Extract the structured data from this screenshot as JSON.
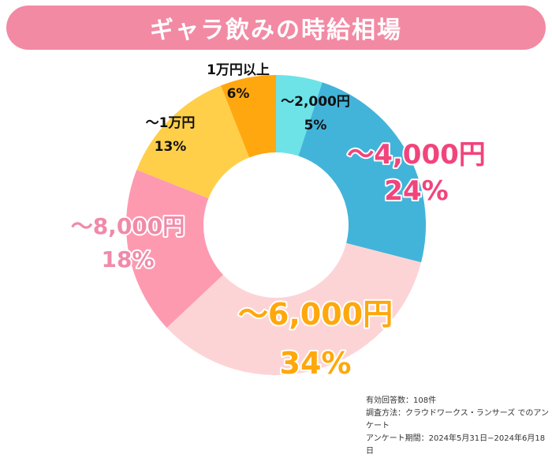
{
  "title": "ギャラ飲みの時給相場",
  "colors": {
    "title_bg": "#f28aa4",
    "title_text": "#ffffff"
  },
  "chart_data": {
    "type": "pie",
    "subtype": "donut",
    "title": "ギャラ飲みの時給相場",
    "categories": [
      "〜2,000円",
      "〜4,000円",
      "〜6,000円",
      "〜8,000円",
      "〜1万円",
      "1万円以上"
    ],
    "values": [
      5,
      24,
      34,
      18,
      13,
      6
    ],
    "value_labels": [
      "5%",
      "24%",
      "34%",
      "18%",
      "13%",
      "6%"
    ],
    "unit": "%",
    "colors": [
      "#6de3e8",
      "#42b4d9",
      "#fdd4d6",
      "#fe9ab0",
      "#ffcf4a",
      "#ffa70f"
    ],
    "label_colors": [
      "#111111",
      "#f2447c",
      "#fea80c",
      "#f08aa8",
      "#111111",
      "#111111"
    ],
    "legend": "none",
    "grid": false
  },
  "footnote": {
    "line1": "有効回答数：108件",
    "line2": "調査方法：クラウドワークス・ランサーズ でのアンケート",
    "line3": "アンケート期間：2024年5月31日−2024年6月18日"
  }
}
